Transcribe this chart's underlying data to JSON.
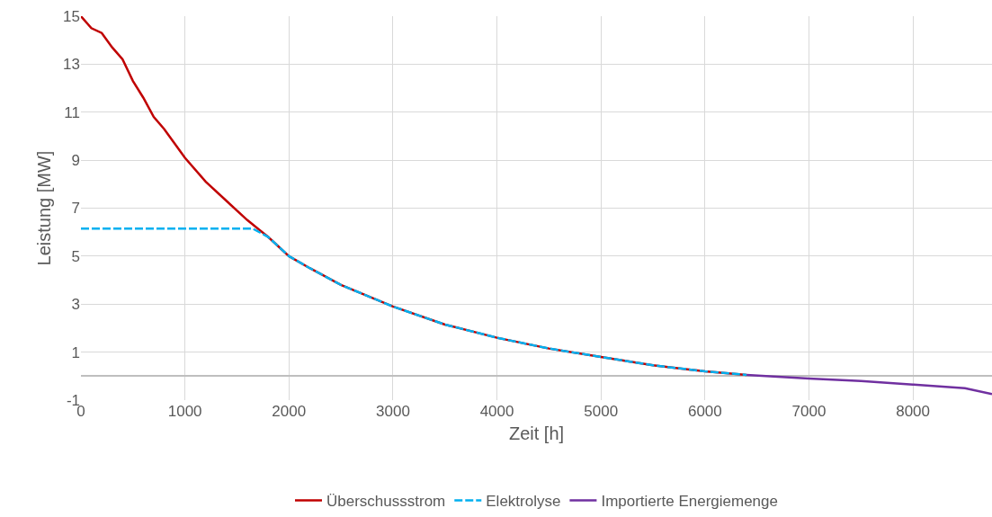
{
  "chart_data": {
    "type": "line",
    "xlabel": "Zeit [h]",
    "ylabel": "Leistung [MW]",
    "xlim": [
      0,
      8760
    ],
    "xticks": [
      0,
      1000,
      2000,
      3000,
      4000,
      5000,
      6000,
      7000,
      8000
    ],
    "ylim": [
      -1,
      15
    ],
    "yticks": [
      -1,
      1,
      3,
      5,
      7,
      9,
      11,
      13,
      15
    ],
    "grid": true,
    "legend": "bottom",
    "marker": "none",
    "series": [
      {
        "name": "Überschussstrom",
        "color": "#c00000",
        "line_style": "solid",
        "x": [
          0,
          100,
          200,
          300,
          400,
          500,
          600,
          700,
          800,
          900,
          1000,
          1200,
          1400,
          1600,
          1800,
          2000,
          2200,
          2500,
          3000,
          3500,
          4000,
          4500,
          5000,
          5500,
          6000,
          6400
        ],
        "values": [
          15.0,
          14.5,
          14.3,
          13.7,
          13.2,
          12.3,
          11.6,
          10.8,
          10.3,
          9.7,
          9.1,
          8.1,
          7.3,
          6.5,
          5.8,
          5.0,
          4.5,
          3.8,
          2.9,
          2.15,
          1.6,
          1.15,
          0.8,
          0.45,
          0.2,
          0.05
        ]
      },
      {
        "name": "Elektrolyse",
        "color": "#00b0f0",
        "line_style": "dashed",
        "x": [
          0,
          1650,
          1800,
          2000,
          2200,
          2500,
          3000,
          3500,
          4000,
          4500,
          5000,
          5500,
          6000,
          6400
        ],
        "values": [
          6.15,
          6.15,
          5.8,
          5.0,
          4.5,
          3.8,
          2.9,
          2.15,
          1.6,
          1.15,
          0.8,
          0.45,
          0.2,
          0.05
        ]
      },
      {
        "name": "Importierte Energiemenge",
        "color": "#7030a0",
        "line_style": "solid",
        "x": [
          6400,
          7000,
          7500,
          8000,
          8500,
          8760
        ],
        "values": [
          0.05,
          -0.1,
          -0.2,
          -0.35,
          -0.5,
          -0.75
        ]
      }
    ]
  }
}
